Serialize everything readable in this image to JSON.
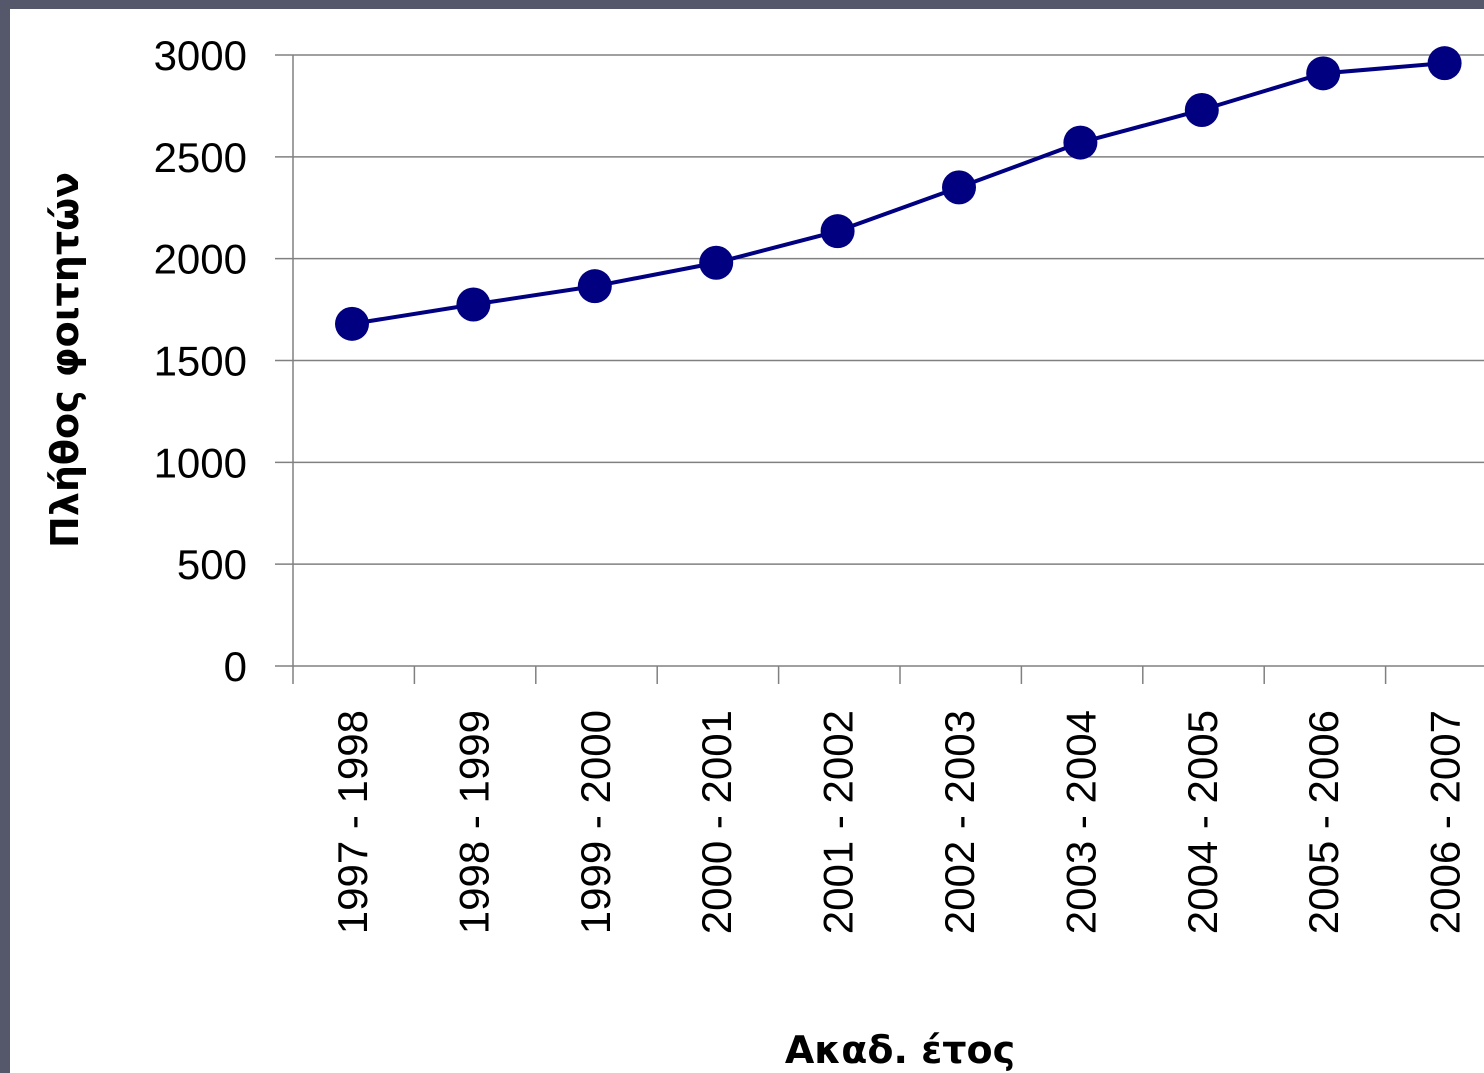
{
  "chart_data": {
    "type": "line",
    "title": "",
    "xlabel": "Ακαδ. έτος",
    "ylabel": "Πλήθος φοιτητών",
    "ylim": [
      0,
      3000
    ],
    "yticks": [
      "0",
      "500",
      "1000",
      "1500",
      "2000",
      "2500",
      "3000"
    ],
    "grid": true,
    "legend": "none",
    "categories": [
      "1997 - 1998",
      "1998 - 1999",
      "1999 - 2000",
      "2000 - 2001",
      "2001 - 2002",
      "2002 - 2003",
      "2003 - 2004",
      "2004 - 2005",
      "2005 - 2006",
      "2006 - 2007"
    ],
    "series": [
      {
        "values": [
          1680,
          1775,
          1865,
          1980,
          2135,
          2350,
          2570,
          2730,
          2910,
          2960
        ],
        "color": "#000080",
        "marker": "circle"
      }
    ]
  },
  "colors": {
    "background_border": "#55586a",
    "plot_background": "#ffffff",
    "gridline": "#808080",
    "series": "#000080"
  }
}
